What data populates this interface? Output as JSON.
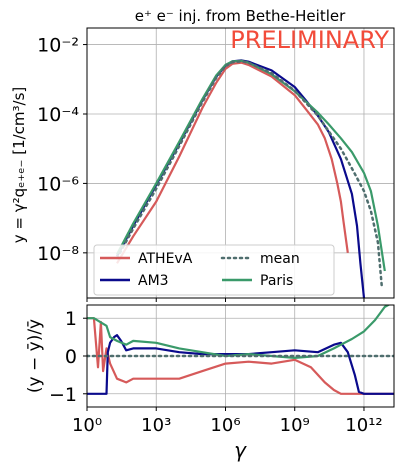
{
  "chart_data": [
    {
      "type": "line",
      "title": "e⁺ e⁻ inj. from Bethe-Heitler",
      "annotation": "PRELIMINARY",
      "ylabel": "y = γ²qₑ₊ₑ₋ [1/cm³/s]",
      "xlabel": "",
      "xscale": "log",
      "yscale": "log",
      "xlim": [
        1,
        20000000000000.0
      ],
      "ylim": [
        5e-10,
        0.03
      ],
      "yticks": [
        {
          "v": 1e-08,
          "label": "10⁻⁸"
        },
        {
          "v": 1e-06,
          "label": "10⁻⁶"
        },
        {
          "v": 0.0001,
          "label": "10⁻⁴"
        },
        {
          "v": 0.01,
          "label": "10⁻²"
        }
      ],
      "grid": true,
      "legend_position": "lower-left",
      "legend_columns": 2,
      "series": [
        {
          "name": "ATHEvA",
          "color": "#d65a5a",
          "style": "solid",
          "x": [
            20.0,
            100.0,
            1000.0,
            10000.0,
            100000.0,
            400000.0,
            1000000.0,
            2000000.0,
            5000000.0,
            10000000.0,
            100000000.0,
            1000000000.0,
            3000000000.0,
            10000000000.0,
            20000000000.0,
            40000000000.0,
            70000000000.0,
            100000000000.0,
            130000000000.0,
            200000000000.0
          ],
          "y": [
            5e-09,
            3e-08,
            3e-07,
            6e-06,
            0.00015,
            0.0008,
            0.002,
            0.0028,
            0.003,
            0.0026,
            0.0012,
            0.00035,
            0.00014,
            5e-05,
            2e-05,
            5e-06,
            1e-06,
            3e-07,
            8e-08,
            1e-08
          ]
        },
        {
          "name": "AM3",
          "color": "#0a0a8c",
          "style": "solid",
          "x": [
            20.0,
            100.0,
            1000.0,
            10000.0,
            100000.0,
            400000.0,
            1000000.0,
            2000000.0,
            5000000.0,
            10000000.0,
            100000000.0,
            1000000000.0,
            3000000000.0,
            10000000000.0,
            30000000000.0,
            100000000000.0,
            300000000000.0,
            500000000000.0,
            700000000000.0,
            1000000000000.0
          ],
          "y": [
            8e-09,
            6e-08,
            9e-07,
            1.4e-05,
            0.00025,
            0.0012,
            0.0025,
            0.0033,
            0.0035,
            0.0032,
            0.0018,
            0.0006,
            0.00025,
            9e-05,
            3e-05,
            5e-06,
            5e-07,
            6e-08,
            5e-09,
            5e-10
          ]
        },
        {
          "name": "Paris",
          "color": "#3a9a6a",
          "style": "solid",
          "x": [
            20.0,
            100.0,
            1000.0,
            10000.0,
            100000.0,
            400000.0,
            1000000.0,
            2000000.0,
            5000000.0,
            10000000.0,
            100000000.0,
            1000000000.0,
            10000000000.0,
            30000000000.0,
            100000000000.0,
            300000000000.0,
            1000000000000.0,
            2000000000000.0,
            4000000000000.0,
            8000000000000.0
          ],
          "y": [
            9e-09,
            7e-08,
            1e-06,
            1.6e-05,
            0.00027,
            0.0013,
            0.0026,
            0.0033,
            0.0034,
            0.003,
            0.0014,
            0.00045,
            0.00011,
            5e-05,
            2e-05,
            8e-06,
            2e-06,
            6e-07,
            6e-08,
            3e-09
          ]
        },
        {
          "name": "mean",
          "color": "#4f6e6e",
          "style": "dotted",
          "x": [
            20.0,
            100.0,
            1000.0,
            10000.0,
            100000.0,
            400000.0,
            1000000.0,
            2000000.0,
            5000000.0,
            10000000.0,
            100000000.0,
            1000000000.0,
            10000000000.0,
            100000000000.0,
            300000000000.0,
            1000000000000.0,
            2000000000000.0,
            4000000000000.0,
            6000000000000.0
          ],
          "y": [
            7e-09,
            5e-08,
            7e-07,
            1.2e-05,
            0.00022,
            0.0011,
            0.0024,
            0.0031,
            0.0033,
            0.003,
            0.0015,
            0.00047,
            9e-05,
            1e-05,
            2.7e-06,
            6e-07,
            1.6e-07,
            2e-08,
            1e-09
          ]
        }
      ]
    },
    {
      "type": "line",
      "xlabel": "γ",
      "ylabel": "(y − ȳ)/ȳ",
      "xscale": "log",
      "xlim": [
        1,
        20000000000000.0
      ],
      "ylim": [
        -1.35,
        1.35
      ],
      "xticks": [
        {
          "v": 1,
          "label": "10⁰"
        },
        {
          "v": 1000.0,
          "label": "10³"
        },
        {
          "v": 1000000.0,
          "label": "10⁶"
        },
        {
          "v": 1000000000.0,
          "label": "10⁹"
        },
        {
          "v": 1000000000000.0,
          "label": "10¹²"
        }
      ],
      "yticks": [
        {
          "v": -1,
          "label": "−1"
        },
        {
          "v": 0,
          "label": "0"
        },
        {
          "v": 1,
          "label": "1"
        }
      ],
      "grid": true,
      "series": [
        {
          "name": "ATHEvA",
          "color": "#d65a5a",
          "style": "solid",
          "x": [
            1,
            2,
            3,
            4,
            5,
            7,
            10,
            20,
            50,
            100,
            1000.0,
            10000.0,
            100000.0,
            1000000.0,
            10000000.0,
            100000000.0,
            1000000000.0,
            5000000000.0,
            20000000000.0,
            50000000000.0,
            100000000000.0,
            300000000000.0,
            1000000000000.0,
            20000000000000.0
          ],
          "y": [
            1,
            1,
            -0.3,
            0.9,
            -0.4,
            0.2,
            -0.2,
            -0.6,
            -0.7,
            -0.6,
            -0.6,
            -0.6,
            -0.4,
            -0.2,
            -0.15,
            -0.2,
            -0.1,
            -0.3,
            -0.7,
            -0.9,
            -1,
            -1,
            -1,
            -1
          ]
        },
        {
          "name": "AM3",
          "color": "#0a0a8c",
          "style": "solid",
          "x": [
            1,
            7,
            8,
            10,
            15,
            20,
            30,
            50,
            100,
            1000.0,
            10000.0,
            100000.0,
            1000000.0,
            10000000.0,
            100000000.0,
            1000000000.0,
            10000000000.0,
            50000000000.0,
            100000000000.0,
            200000000000.0,
            400000000000.0,
            600000000000.0,
            1000000000000.0,
            20000000000000.0
          ],
          "y": [
            -1,
            -1,
            0.1,
            0.35,
            0.5,
            0.55,
            0.4,
            0.15,
            0.2,
            0.2,
            0.1,
            0.05,
            0.05,
            0.05,
            0.1,
            0.15,
            0.1,
            0.3,
            0.35,
            0.1,
            -0.5,
            -0.95,
            -1,
            -1
          ]
        },
        {
          "name": "Paris",
          "color": "#3a9a6a",
          "style": "solid",
          "x": [
            1,
            2,
            7,
            10,
            20,
            50,
            100,
            1000.0,
            10000.0,
            100000.0,
            1000000.0,
            10000000.0,
            100000000.0,
            1000000000.0,
            10000000000.0,
            50000000000.0,
            100000000000.0,
            300000000000.0,
            1000000000000.0,
            3000000000000.0,
            8000000000000.0,
            16000000000000.0
          ],
          "y": [
            1,
            1,
            0.8,
            0.5,
            0.4,
            0.3,
            0.4,
            0.35,
            0.2,
            0.1,
            0.0,
            0.05,
            0.0,
            -0.05,
            0.0,
            0.2,
            0.3,
            0.45,
            0.65,
            0.95,
            1.3,
            1.4
          ]
        },
        {
          "name": "mean",
          "color": "#4f6e6e",
          "style": "dotted",
          "x": [
            1,
            20000000000000.0
          ],
          "y": [
            0,
            0
          ]
        }
      ]
    }
  ]
}
